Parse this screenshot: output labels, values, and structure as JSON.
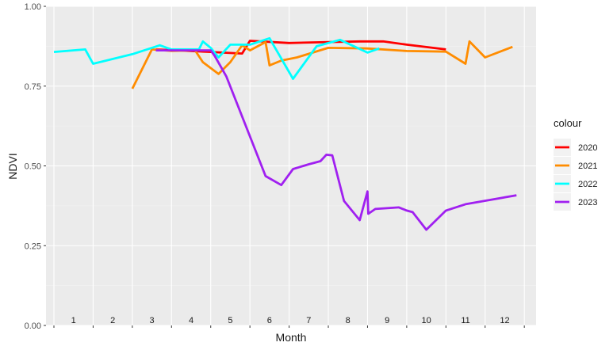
{
  "chart_data": {
    "type": "line",
    "title": "",
    "xlabel": "Month",
    "ylabel": "NDVI",
    "xlim": [
      0,
      12.3
    ],
    "ylim": [
      0,
      1
    ],
    "yticks": [
      0,
      0.25,
      0.5,
      0.75,
      1
    ],
    "ytick_labels": [
      "0.00",
      "0.25",
      "0.50",
      "0.75",
      "1.00"
    ],
    "xticks": [
      0,
      1,
      2,
      3,
      4,
      5,
      6,
      7,
      8,
      9,
      10,
      11,
      12
    ],
    "month_labels": [
      "1",
      "2",
      "3",
      "4",
      "5",
      "6",
      "7",
      "8",
      "9",
      "10",
      "11",
      "12"
    ],
    "grid": true,
    "legend": {
      "title": "colour",
      "position": "right"
    },
    "series": [
      {
        "name": "2020",
        "color": "#ff0000",
        "points": [
          [
            2.6,
            0.865
          ],
          [
            4.0,
            0.857
          ],
          [
            4.8,
            0.852
          ],
          [
            5.0,
            0.892
          ],
          [
            6.0,
            0.885
          ],
          [
            7.0,
            0.888
          ],
          [
            7.8,
            0.89
          ],
          [
            8.4,
            0.89
          ],
          [
            9.0,
            0.88
          ],
          [
            10.0,
            0.865
          ]
        ]
      },
      {
        "name": "2021",
        "color": "#ff8c00",
        "points": [
          [
            2.0,
            0.742
          ],
          [
            2.5,
            0.865
          ],
          [
            3.0,
            0.86
          ],
          [
            3.6,
            0.862
          ],
          [
            3.8,
            0.825
          ],
          [
            4.2,
            0.788
          ],
          [
            4.5,
            0.825
          ],
          [
            4.8,
            0.878
          ],
          [
            5.0,
            0.862
          ],
          [
            5.4,
            0.888
          ],
          [
            5.5,
            0.815
          ],
          [
            5.8,
            0.83
          ],
          [
            6.2,
            0.84
          ],
          [
            7.0,
            0.87
          ],
          [
            8.0,
            0.868
          ],
          [
            9.0,
            0.86
          ],
          [
            10.0,
            0.858
          ],
          [
            10.5,
            0.82
          ],
          [
            10.6,
            0.89
          ],
          [
            11.0,
            0.84
          ],
          [
            11.7,
            0.873
          ]
        ]
      },
      {
        "name": "2022",
        "color": "#00ffff",
        "points": [
          [
            0.0,
            0.857
          ],
          [
            0.8,
            0.865
          ],
          [
            1.0,
            0.82
          ],
          [
            2.0,
            0.85
          ],
          [
            2.7,
            0.878
          ],
          [
            3.0,
            0.865
          ],
          [
            3.7,
            0.865
          ],
          [
            3.8,
            0.89
          ],
          [
            4.0,
            0.87
          ],
          [
            4.2,
            0.84
          ],
          [
            4.5,
            0.88
          ],
          [
            5.0,
            0.88
          ],
          [
            5.5,
            0.9
          ],
          [
            6.1,
            0.773
          ],
          [
            6.7,
            0.875
          ],
          [
            7.3,
            0.895
          ],
          [
            8.0,
            0.855
          ],
          [
            8.3,
            0.868
          ]
        ]
      },
      {
        "name": "2023",
        "color": "#a020f0",
        "points": [
          [
            2.6,
            0.862
          ],
          [
            3.5,
            0.862
          ],
          [
            4.0,
            0.862
          ],
          [
            4.1,
            0.845
          ],
          [
            4.4,
            0.78
          ],
          [
            5.4,
            0.468
          ],
          [
            5.8,
            0.44
          ],
          [
            6.1,
            0.49
          ],
          [
            6.5,
            0.505
          ],
          [
            6.8,
            0.515
          ],
          [
            6.95,
            0.535
          ],
          [
            7.1,
            0.533
          ],
          [
            7.4,
            0.39
          ],
          [
            7.8,
            0.33
          ],
          [
            8.0,
            0.42
          ],
          [
            8.02,
            0.35
          ],
          [
            8.2,
            0.365
          ],
          [
            8.8,
            0.37
          ],
          [
            9.0,
            0.36
          ],
          [
            9.15,
            0.355
          ],
          [
            9.5,
            0.3
          ],
          [
            10.0,
            0.36
          ],
          [
            10.5,
            0.38
          ],
          [
            11.8,
            0.408
          ]
        ]
      }
    ]
  }
}
